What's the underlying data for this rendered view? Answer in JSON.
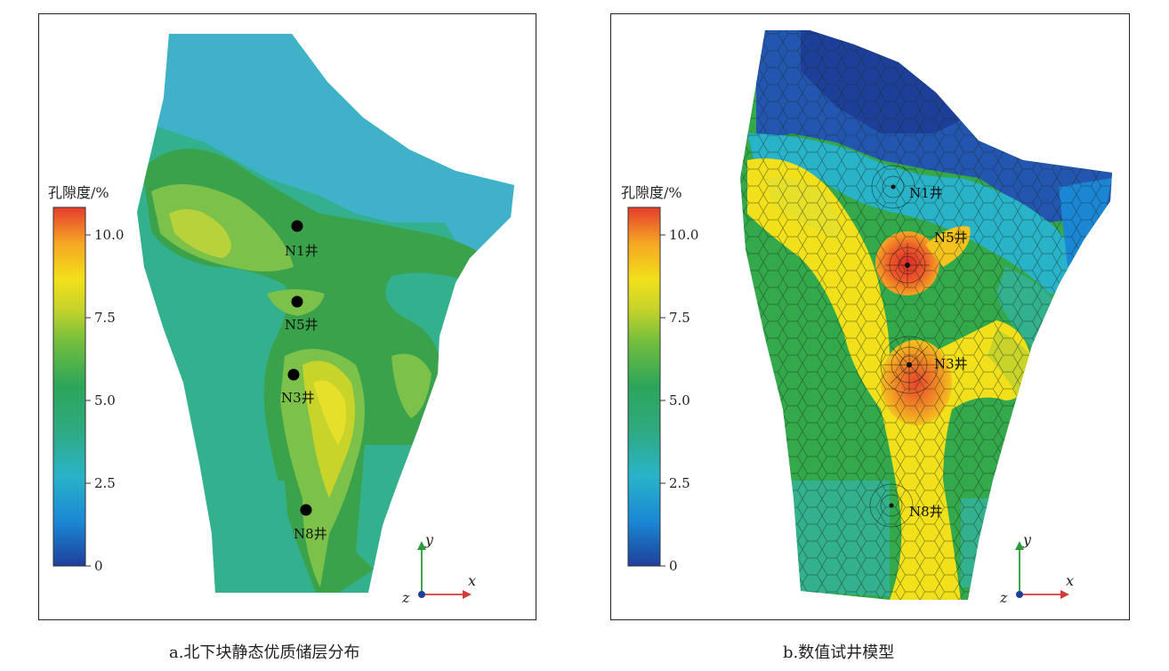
{
  "panel_a": {
    "caption": "a.北下块静态优质储层分布",
    "colorbar": {
      "title": "孔隙度/%",
      "ticks": [
        "10.0",
        "7.5",
        "5.0",
        "2.5",
        "0"
      ],
      "min": 0,
      "max": 10.8
    },
    "wells": [
      {
        "label": "N1井"
      },
      {
        "label": "N5井"
      },
      {
        "label": "N3井"
      },
      {
        "label": "N8井"
      }
    ],
    "axes": {
      "x": "x",
      "y": "y",
      "z": "z"
    }
  },
  "panel_b": {
    "caption": "b.数值试井模型",
    "colorbar": {
      "title": "孔隙度/%",
      "ticks": [
        "10.0",
        "7.5",
        "5.0",
        "2.5",
        "0"
      ],
      "min": 0,
      "max": 10.8
    },
    "wells": [
      {
        "label": "N1井"
      },
      {
        "label": "N5井"
      },
      {
        "label": "N3井"
      },
      {
        "label": "N8井"
      }
    ],
    "axes": {
      "x": "x",
      "y": "y",
      "z": "z"
    }
  },
  "colors": {
    "scale": [
      "#1e3f99",
      "#1a86d4",
      "#29b3c9",
      "#2ca55a",
      "#5cb84a",
      "#c8d42a",
      "#f2e01a",
      "#f6a623",
      "#e53d2c"
    ],
    "blue_area": "#3fb2c9",
    "teal": "#33b08e",
    "green": "#3aa24a",
    "light_green": "#7cc24a",
    "yellow": "#e3e02a"
  }
}
